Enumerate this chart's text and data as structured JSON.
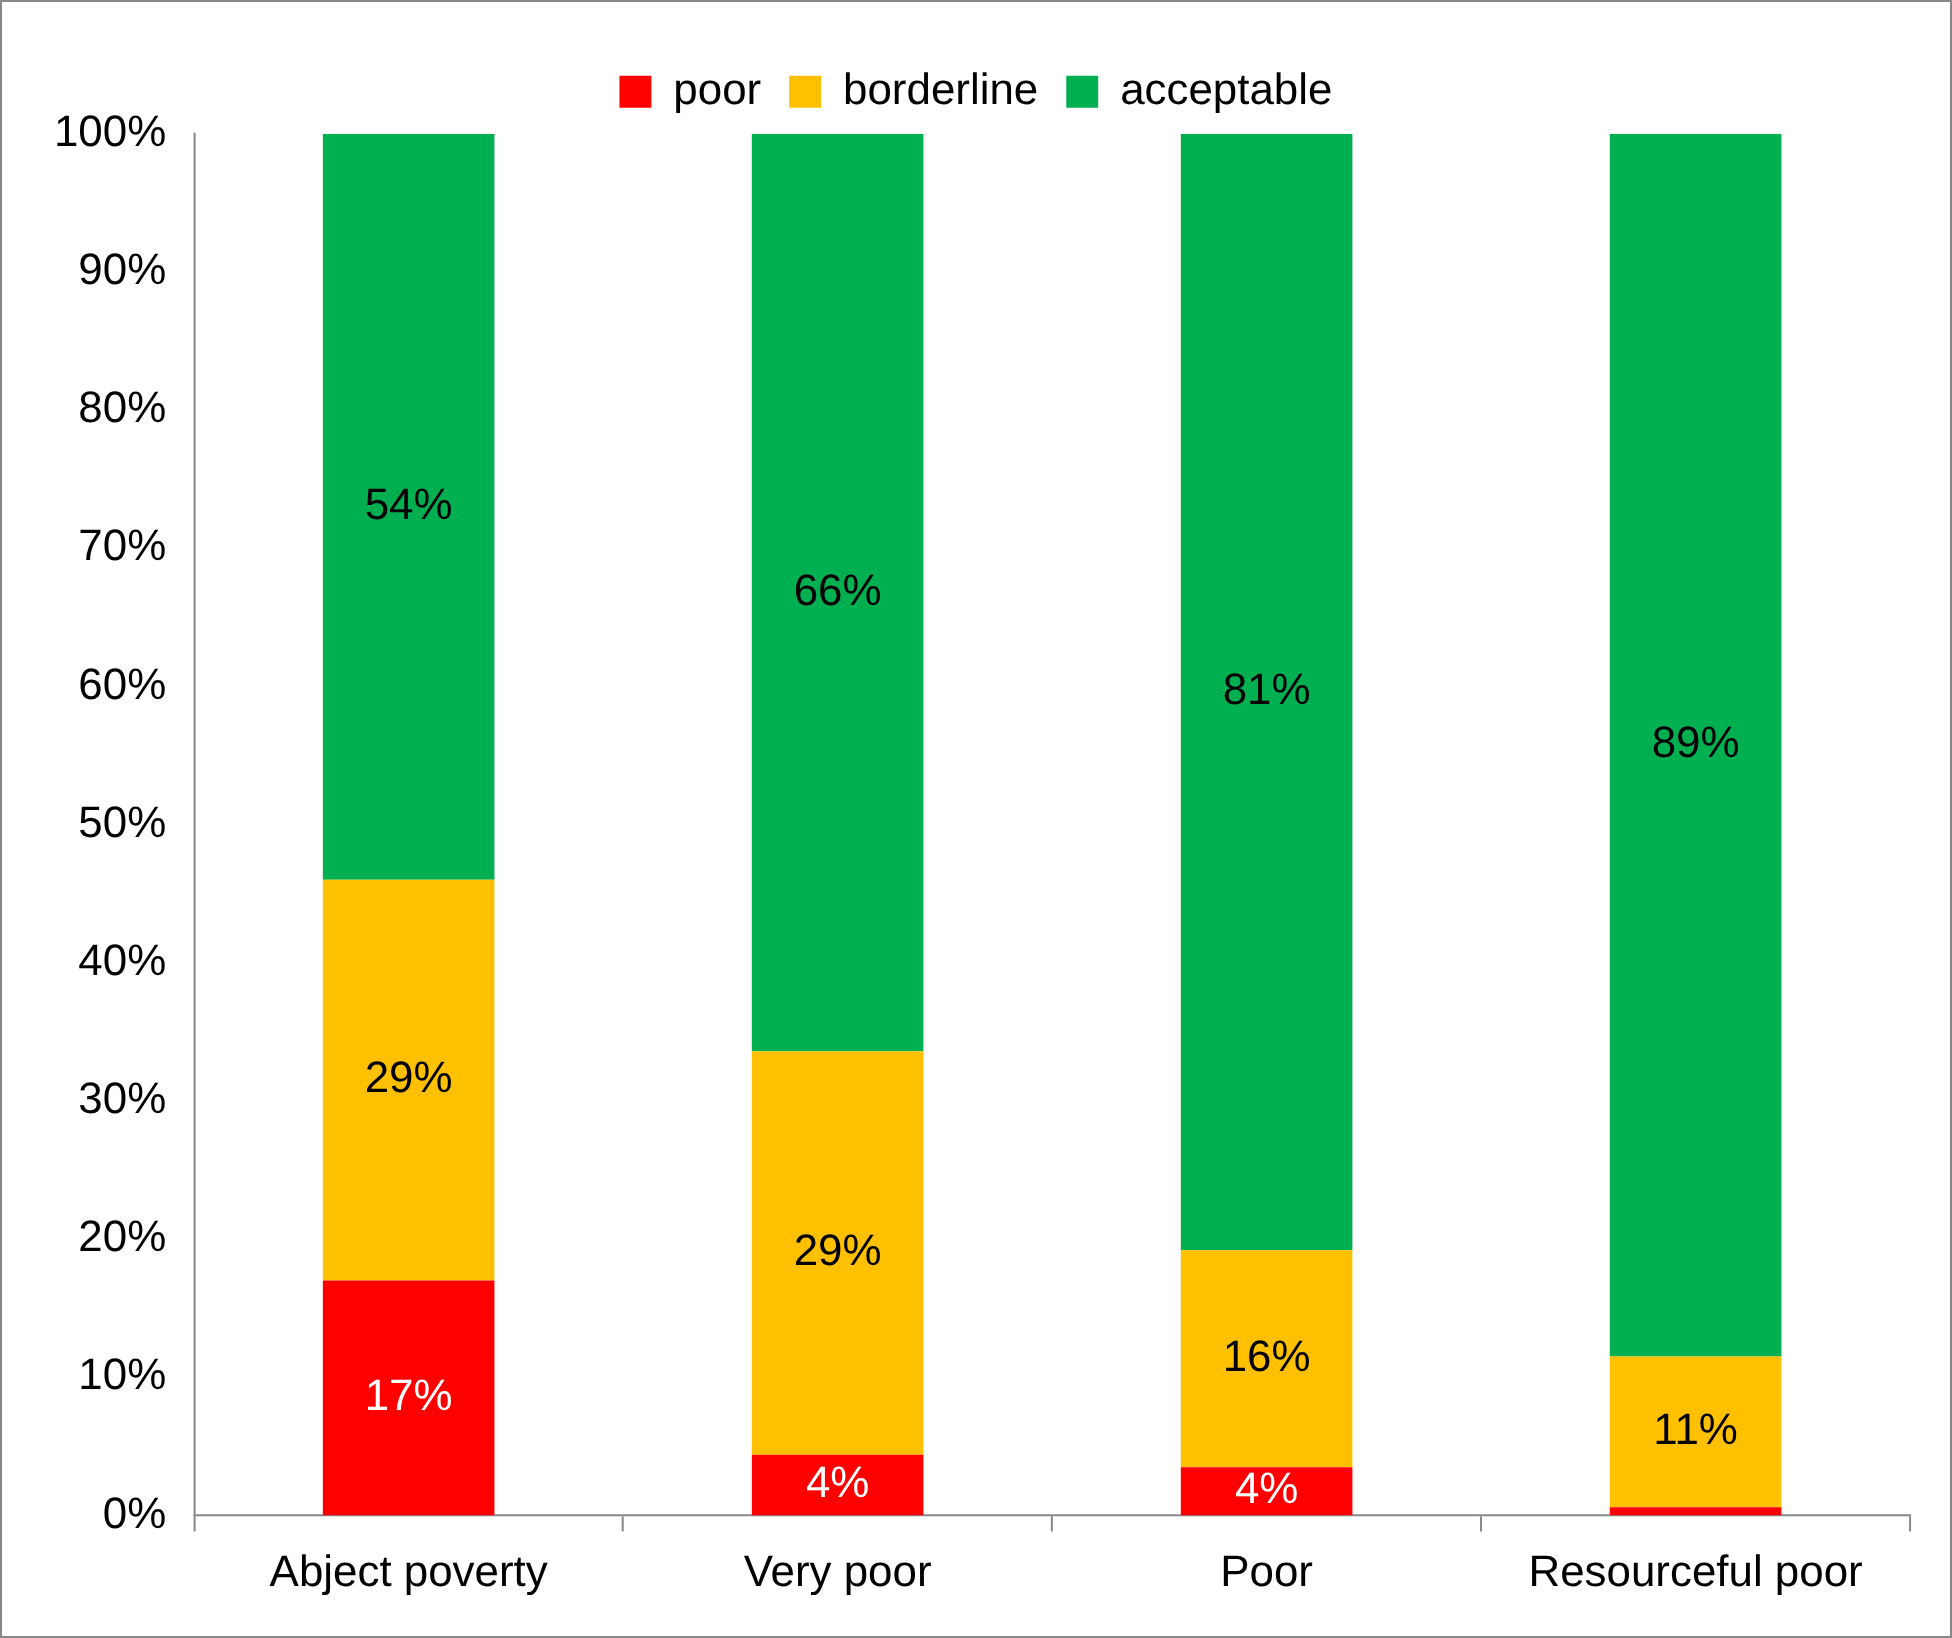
{
  "chart_data": {
    "type": "bar",
    "stacked": true,
    "legend": "top",
    "grid": false,
    "categories": [
      "Abject poverty",
      "Very poor",
      "Poor",
      "Resourceful poor"
    ],
    "ylim": [
      0,
      100
    ],
    "yticks": [
      {
        "value": 0,
        "label": "0%"
      },
      {
        "value": 10,
        "label": "10%"
      },
      {
        "value": 20,
        "label": "20%"
      },
      {
        "value": 30,
        "label": "30%"
      },
      {
        "value": 40,
        "label": "40%"
      },
      {
        "value": 50,
        "label": "50%"
      },
      {
        "value": 60,
        "label": "60%"
      },
      {
        "value": 70,
        "label": "70%"
      },
      {
        "value": 80,
        "label": "80%"
      },
      {
        "value": 90,
        "label": "90%"
      },
      {
        "value": 100,
        "label": "100%"
      }
    ],
    "series": [
      {
        "name": "poor",
        "color": "#ff0000",
        "values": [
          17,
          4.4,
          3.5,
          0.6
        ],
        "value_labels": [
          "17%",
          "4%",
          "4%",
          null
        ]
      },
      {
        "name": "borderline",
        "color": "#ffc000",
        "values": [
          29,
          29.2,
          15.7,
          10.9
        ],
        "value_labels": [
          "29%",
          "29%",
          "16%",
          "11%"
        ]
      },
      {
        "name": "acceptable",
        "color": "#00b050",
        "values": [
          54,
          66.4,
          80.8,
          88.5
        ],
        "value_labels": [
          "54%",
          "66%",
          "81%",
          "89%"
        ]
      }
    ]
  }
}
